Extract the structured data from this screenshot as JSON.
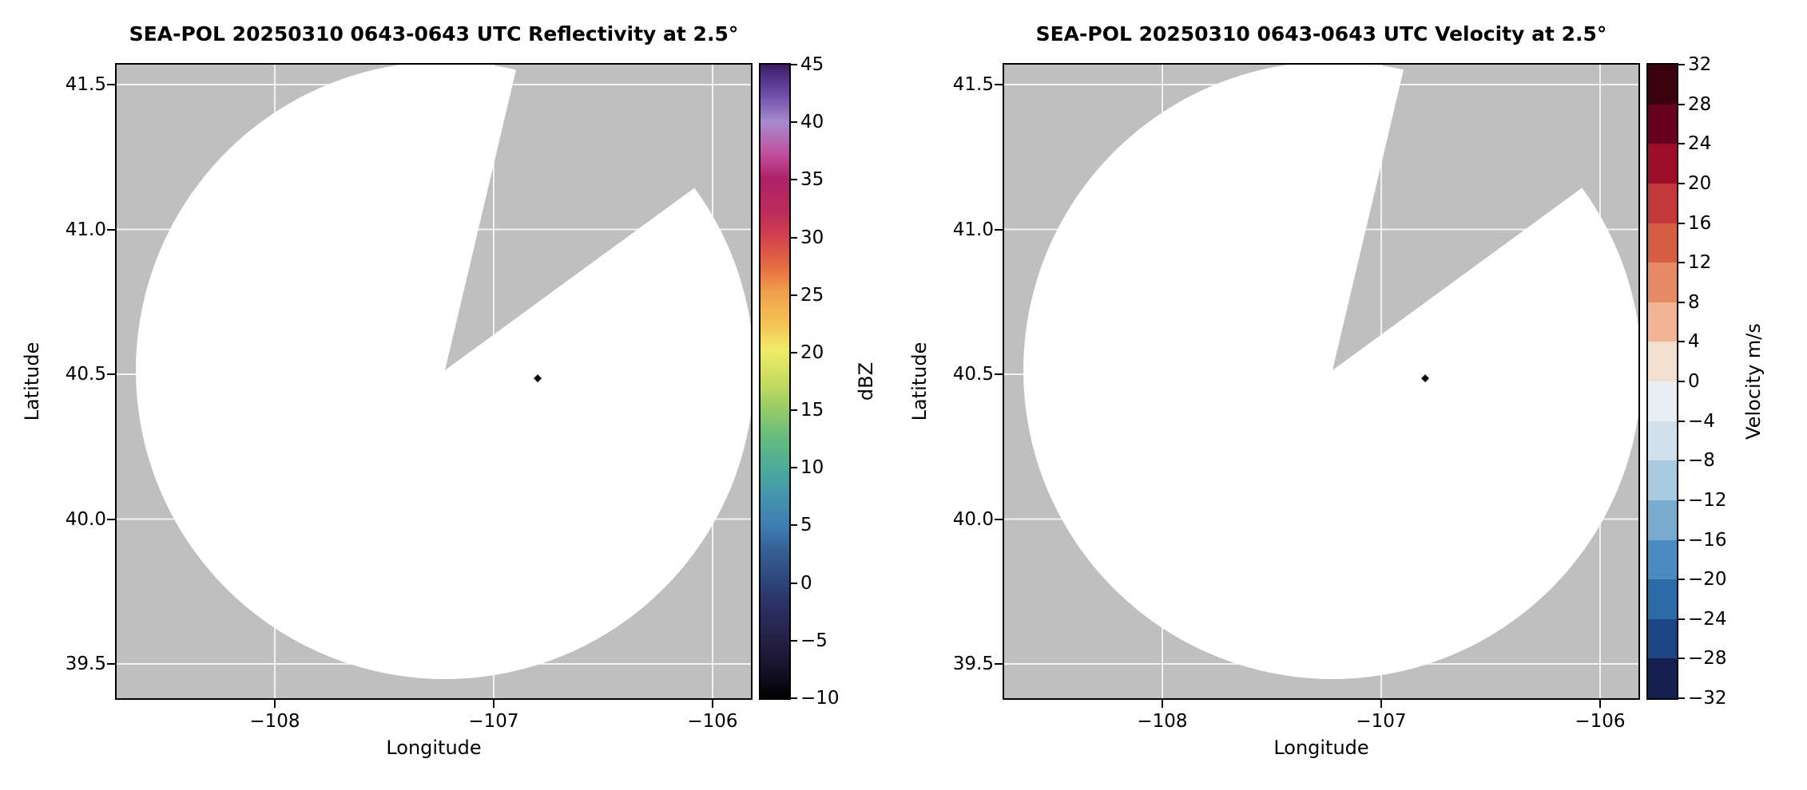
{
  "colors": {
    "background": "#ffffff",
    "masked_gray": "#bfbfbf",
    "scan_white": "#ffffff",
    "grid": "#ffffff",
    "spine": "#000000",
    "marker": "#0b0b0b"
  },
  "panels": [
    {
      "title": "SEA-POL 20250310 0643-0643 UTC Reflectivity at 2.5°",
      "xlabel": "Longitude",
      "ylabel": "Latitude",
      "colorbar": {
        "label": "dBZ",
        "type": "continuous",
        "min": -10,
        "max": 45,
        "ticks": [
          45,
          40,
          35,
          30,
          25,
          20,
          15,
          10,
          5,
          0,
          -5,
          -10
        ],
        "tick_labels": [
          "45",
          "40",
          "35",
          "30",
          "25",
          "20",
          "15",
          "10",
          "5",
          "0",
          "−5",
          "−10"
        ],
        "gradient": [
          [
            0,
            "#000000"
          ],
          [
            4.5,
            "#15122a"
          ],
          [
            9,
            "#251f45"
          ],
          [
            14,
            "#2a2e62"
          ],
          [
            18,
            "#2e4376"
          ],
          [
            23,
            "#355e93"
          ],
          [
            27,
            "#3e7cb1"
          ],
          [
            32,
            "#4595ac"
          ],
          [
            36,
            "#4aab9b"
          ],
          [
            41,
            "#64bb7f"
          ],
          [
            45,
            "#90c969"
          ],
          [
            50,
            "#c7dc5f"
          ],
          [
            55,
            "#f2eb69"
          ],
          [
            59,
            "#f4c355"
          ],
          [
            64,
            "#f1a04b"
          ],
          [
            68,
            "#e66e40"
          ],
          [
            73,
            "#d23f4e"
          ],
          [
            77,
            "#bc2a5b"
          ],
          [
            82,
            "#ad2268"
          ],
          [
            86,
            "#c0509f"
          ],
          [
            91,
            "#a78bce"
          ],
          [
            95,
            "#7150ae"
          ],
          [
            100,
            "#3b1d66"
          ]
        ]
      }
    },
    {
      "title": "SEA-POL 20250310 0643-0643 UTC Velocity at 2.5°",
      "xlabel": "Longitude",
      "ylabel": "Latitude",
      "colorbar": {
        "label": "Velocity m/s",
        "type": "discrete",
        "min": -32,
        "max": 32,
        "ticks": [
          32,
          28,
          24,
          20,
          16,
          12,
          8,
          4,
          0,
          -4,
          -8,
          -12,
          -16,
          -20,
          -24,
          -28,
          -32
        ],
        "tick_labels": [
          "32",
          "28",
          "24",
          "20",
          "16",
          "12",
          "8",
          "4",
          "0",
          "−4",
          "−8",
          "−12",
          "−16",
          "−20",
          "−24",
          "−28",
          "−32"
        ],
        "segments_top_to_bottom": [
          "#3b000e",
          "#67001f",
          "#9e0d27",
          "#c2383b",
          "#d55f45",
          "#e78a68",
          "#f2b493",
          "#f3dfcd",
          "#e9eef2",
          "#cfe1ec",
          "#a8c9e0",
          "#79abd0",
          "#4a8cbf",
          "#2c69a7",
          "#1d4687",
          "#131f4e"
        ]
      }
    }
  ],
  "chart_data": [
    {
      "type": "heatmap",
      "subtype": "radar-ppi-map",
      "title": "SEA-POL 20250310 0643-0643 UTC Reflectivity at 2.5°",
      "xlabel": "Longitude",
      "ylabel": "Latitude",
      "xlim": [
        -108.7226,
        -105.8248
      ],
      "ylim": [
        39.3816,
        41.5689
      ],
      "xticks": [
        -108,
        -107,
        -106
      ],
      "xtick_labels": [
        "−108",
        "−107",
        "−106"
      ],
      "yticks": [
        41.5,
        41.0,
        40.5,
        40.0,
        39.5
      ],
      "ytick_labels": [
        "41.5",
        "41.0",
        "40.5",
        "40.0",
        "39.5"
      ],
      "grid": true,
      "colorbar_label": "dBZ",
      "colorbar_range": [
        -10,
        45
      ],
      "radar": {
        "center_lon": -107.2226,
        "center_lat": 40.5138,
        "scan_radius_deg_lat": 1.066,
        "missing_sector_azimuth_deg": [
          13.3,
          53.8
        ]
      },
      "echoes": [
        {
          "lon": -106.799,
          "lat": 40.486
        }
      ]
    },
    {
      "type": "heatmap",
      "subtype": "radar-ppi-map",
      "title": "SEA-POL 20250310 0643-0643 UTC Velocity at 2.5°",
      "xlabel": "Longitude",
      "ylabel": "Latitude",
      "xlim": [
        -108.7226,
        -105.8248
      ],
      "ylim": [
        39.3816,
        41.5689
      ],
      "xticks": [
        -108,
        -107,
        -106
      ],
      "xtick_labels": [
        "−108",
        "−107",
        "−106"
      ],
      "yticks": [
        41.5,
        41.0,
        40.5,
        40.0,
        39.5
      ],
      "ytick_labels": [
        "41.5",
        "41.0",
        "40.5",
        "40.0",
        "39.5"
      ],
      "grid": true,
      "colorbar_label": "Velocity m/s",
      "colorbar_range": [
        -32,
        32
      ],
      "radar": {
        "center_lon": -107.2226,
        "center_lat": 40.5138,
        "scan_radius_deg_lat": 1.066,
        "missing_sector_azimuth_deg": [
          13.3,
          53.8
        ]
      },
      "echoes": [
        {
          "lon": -106.799,
          "lat": 40.486
        }
      ]
    }
  ]
}
